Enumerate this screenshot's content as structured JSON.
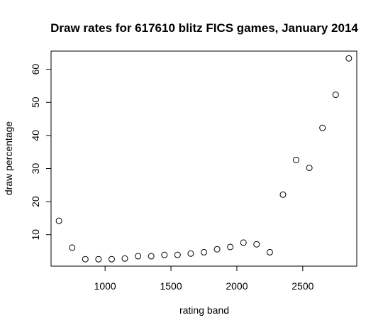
{
  "chart_data": {
    "type": "scatter",
    "title": "Draw rates for 617610 blitz FICS games, January 2014",
    "xlabel": "rating band",
    "ylabel": "draw percentage",
    "xlim": [
      590,
      2910
    ],
    "ylim": [
      0.5,
      65.5
    ],
    "x_ticks": [
      1000,
      1500,
      2000,
      2500
    ],
    "y_ticks": [
      10,
      20,
      30,
      40,
      50,
      60
    ],
    "grid": false,
    "legend": "none",
    "x": [
      650,
      750,
      850,
      950,
      1050,
      1150,
      1250,
      1350,
      1450,
      1550,
      1650,
      1750,
      1850,
      1950,
      2050,
      2150,
      2250,
      2350,
      2450,
      2550,
      2650,
      2750,
      2850
    ],
    "y": [
      14.2,
      6.1,
      2.6,
      2.6,
      2.6,
      2.8,
      3.5,
      3.5,
      3.9,
      3.9,
      4.3,
      4.7,
      5.6,
      6.3,
      7.6,
      7.1,
      4.7,
      22.1,
      32.6,
      30.2,
      42.3,
      52.3,
      63.3
    ]
  }
}
